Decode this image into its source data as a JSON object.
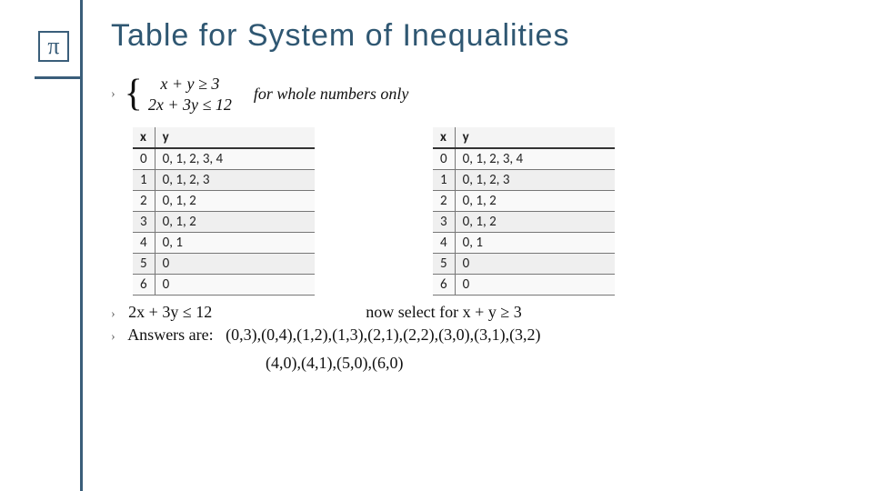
{
  "title": "Table for System of Inequalities",
  "icon_glyph": "π",
  "colors": {
    "accent": "#3a5e7a",
    "title": "#2f5772",
    "table_bg": "#f4f4f4",
    "row_alt": "#efefef",
    "border": "#777777",
    "text": "#111111"
  },
  "system": {
    "eq1": "x + y ≥ 3",
    "eq2": "2x + 3y ≤ 12",
    "note": "for whole numbers only"
  },
  "table_left": {
    "columns": [
      "x",
      "y"
    ],
    "rows": [
      [
        "0",
        "0, 1, 2, 3, 4"
      ],
      [
        "1",
        "0, 1, 2, 3"
      ],
      [
        "2",
        "0, 1, 2"
      ],
      [
        "3",
        "0, 1, 2"
      ],
      [
        "4",
        "0, 1"
      ],
      [
        "5",
        "0"
      ],
      [
        "6",
        "0"
      ]
    ]
  },
  "table_right": {
    "columns": [
      "x",
      "y"
    ],
    "rows": [
      [
        "0",
        "0, 1, 2, 3, 4"
      ],
      [
        "1",
        "0, 1, 2, 3"
      ],
      [
        "2",
        "0, 1, 2"
      ],
      [
        "3",
        "0, 1, 2"
      ],
      [
        "4",
        "0, 1"
      ],
      [
        "5",
        "0"
      ],
      [
        "6",
        "0"
      ]
    ]
  },
  "constraint_left": "2x + 3y ≤ 12",
  "constraint_right": "now select for x + y ≥ 3",
  "answers_label": "Answers are:",
  "answers_line1": "(0,3),(0,4),(1,2),(1,3),(2,1),(2,2),(3,0),(3,1),(3,2)",
  "answers_line2": "(4,0),(4,1),(5,0),(6,0)"
}
